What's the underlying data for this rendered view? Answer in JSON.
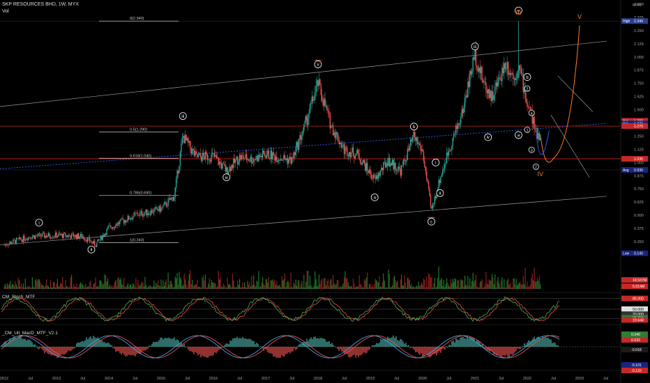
{
  "header": {
    "symbol_line": "SKP RESOURCES BHD, 1W, MYX",
    "vol_label": "Vol"
  },
  "currency_label": "MYR",
  "colors": {
    "up": "#26a69a",
    "down": "#ef5350",
    "volume_up": "#1b7a2a",
    "volume_down": "#8b1e1e",
    "wave_orange": "#ff7f27",
    "fib_line": "#cccccc",
    "trend_line": "#9e9e9e",
    "dotted_blue": "#2962ff",
    "red_hline": "#b71c1c"
  },
  "price_axis": {
    "ticks": [
      "2.500",
      "2.375",
      "2.250",
      "2.125",
      "2.000",
      "1.875",
      "1.750",
      "1.625",
      "1.500",
      "1.375",
      "1.250",
      "1.125",
      "1.000",
      "0.875",
      "0.750",
      "0.625",
      "0.500",
      "0.375",
      "0.250"
    ],
    "tick_values": [
      2.5,
      2.375,
      2.25,
      2.125,
      2.0,
      1.875,
      1.75,
      1.625,
      1.5,
      1.375,
      1.25,
      1.125,
      1.0,
      0.875,
      0.75,
      0.625,
      0.5,
      0.375,
      0.25
    ],
    "badges": [
      {
        "label": "High",
        "value": "2.340",
        "v": 2.34,
        "color": "#2a3f8f"
      },
      {
        "label": "Ask",
        "value": "1.280",
        "v": 1.395,
        "color": "#c62828"
      },
      {
        "label": "Bid",
        "value": "1.270",
        "v": 1.37,
        "color": "#1a237e"
      },
      {
        "label": "",
        "value": "1.270",
        "v": 1.345,
        "color": "#c62828"
      },
      {
        "label": "",
        "value": "1.035",
        "v": 1.035,
        "color": "#c62828"
      },
      {
        "label": "Avg",
        "value": "0.930",
        "v": 0.93,
        "color": "#1a237e"
      },
      {
        "label": "Low",
        "value": "0.140",
        "v": 0.14,
        "color": "#1a237e"
      }
    ]
  },
  "fib_levels": [
    {
      "label": "0(2.340)",
      "v": 2.34
    },
    {
      "label": "0.5(1.290)",
      "v": 1.29
    },
    {
      "label": "0.618(1.040)",
      "v": 1.04
    },
    {
      "label": "0.786(0.690)",
      "v": 0.69
    },
    {
      "label": "1(0.240)",
      "v": 0.24
    }
  ],
  "wave_labels": [
    {
      "text": "i",
      "x": "2012-09",
      "v": 0.43,
      "style": "circle"
    },
    {
      "text": "ii",
      "x": "2013-09",
      "v": 0.175,
      "style": "circle"
    },
    {
      "text": "iii",
      "x": "2015-06",
      "v": 1.44,
      "style": "circle"
    },
    {
      "text": "iv",
      "x": "2016-04",
      "v": 0.86,
      "style": "circle"
    },
    {
      "text": "v",
      "x": "2018-01",
      "v": 1.93,
      "style": "boxed"
    },
    {
      "text": "a",
      "x": "2019-02",
      "v": 0.67,
      "style": "circle"
    },
    {
      "text": "b",
      "x": "2019-11",
      "v": 1.34,
      "style": "circle"
    },
    {
      "text": "c",
      "x": "2020-03",
      "v": 0.44,
      "style": "boxed"
    },
    {
      "text": "i",
      "x": "2020-04",
      "v": 1.0,
      "style": "circle"
    },
    {
      "text": "ii",
      "x": "2020-05",
      "v": 0.71,
      "style": "circle"
    },
    {
      "text": "iii",
      "x": "2021-01",
      "v": 2.1,
      "style": "circle"
    },
    {
      "text": "iv",
      "x": "2021-04",
      "v": 1.24,
      "style": "circle"
    },
    {
      "text": "v",
      "x": "2021-11",
      "v": 2.44,
      "style": "circle"
    },
    {
      "text": "a",
      "x": "2021-11",
      "v": 1.26,
      "style": "circle"
    },
    {
      "text": "b",
      "x": "2022-01",
      "v": 1.81,
      "style": "circle"
    },
    {
      "text": "1",
      "x": "2022-01",
      "v": 1.31,
      "style": "small"
    },
    {
      "text": "2",
      "x": "2022-01",
      "v": 1.7,
      "style": "small"
    },
    {
      "text": "3",
      "x": "2022-02",
      "v": 1.12,
      "style": "small"
    },
    {
      "text": "4",
      "x": "2022-02",
      "v": 1.47,
      "style": "small"
    },
    {
      "text": "2",
      "x": "2022-03",
      "v": 0.96,
      "style": "small"
    }
  ],
  "wave_text_orange": [
    {
      "text": "III",
      "x": "2021-11",
      "v": 2.4
    },
    {
      "text": "IV",
      "x": "2022-04",
      "v": 0.87
    },
    {
      "text": "V",
      "x": "2023-01",
      "v": 2.36
    }
  ],
  "chart_data": {
    "type": "line",
    "title": "SKP RESOURCES BHD, 1W, MYX",
    "x": [
      "2012-01",
      "2012-07",
      "2013-01",
      "2013-07",
      "2013-10",
      "2014-01",
      "2014-07",
      "2015-01",
      "2015-04",
      "2015-06",
      "2015-09",
      "2016-01",
      "2016-04",
      "2016-07",
      "2016-10",
      "2017-01",
      "2017-07",
      "2017-10",
      "2018-01",
      "2018-04",
      "2018-07",
      "2018-10",
      "2019-02",
      "2019-05",
      "2019-08",
      "2019-11",
      "2020-01",
      "2020-03",
      "2020-05",
      "2020-07",
      "2020-10",
      "2021-01",
      "2021-03",
      "2021-05",
      "2021-08",
      "2021-10",
      "2021-11",
      "2021-12",
      "2022-01",
      "2022-02",
      "2022-03"
    ],
    "series": [
      {
        "values": [
          0.22,
          0.3,
          0.31,
          0.3,
          0.22,
          0.38,
          0.5,
          0.56,
          0.68,
          1.25,
          1.05,
          1.06,
          0.92,
          1.05,
          1.03,
          1.08,
          1.02,
          1.35,
          1.75,
          1.35,
          1.12,
          1.08,
          0.83,
          1.02,
          0.92,
          1.25,
          1.1,
          0.54,
          0.85,
          1.12,
          1.46,
          2.03,
          1.75,
          1.62,
          1.95,
          1.8,
          1.93,
          1.75,
          1.55,
          1.45,
          1.27
        ]
      }
    ],
    "x_ticks": [
      "2012",
      "Jul",
      "2013",
      "Jul",
      "2014",
      "Jul",
      "2015",
      "Jul",
      "2016",
      "Jul",
      "2017",
      "Jul",
      "2018",
      "Jul",
      "2019",
      "Jul",
      "2020",
      "Jul",
      "2021",
      "Jul",
      "2022",
      "Jul",
      "2023",
      "Jul"
    ],
    "ylabel": "MYR",
    "ylim": [
      0.14,
      2.56
    ],
    "grid": false,
    "indicators": {
      "volume": {
        "label": "Vol",
        "value_labels": [
          "18.537M",
          "5.014M"
        ]
      },
      "stoch": {
        "label": "CM_Stoch_MTF",
        "levels": [
          "85.000",
          "50.000",
          "20.000"
        ],
        "current": [
          "22.799",
          "19.648"
        ]
      },
      "macd": {
        "label": "_CM_Ult_MacD_MTF_V2.1",
        "values": [
          "0.040",
          "0.032",
          "-0.018",
          "-0.101",
          "-0.133"
        ]
      }
    }
  }
}
